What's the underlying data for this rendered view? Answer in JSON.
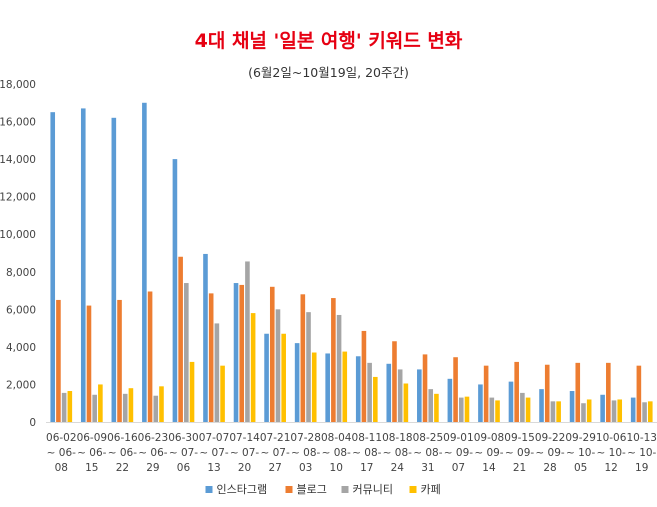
{
  "chart_data": {
    "type": "bar",
    "title": "4대 채널 '일본 여행' 키워드 변화",
    "subtitle": "(6월2일~10월19일, 20주간)",
    "xlabel": "",
    "ylabel": "",
    "ylim": [
      0,
      18000
    ],
    "yticks": [
      "0",
      "2,000",
      "4,000",
      "6,000",
      "8,000",
      "10,000",
      "12,000",
      "14,000",
      "16,000",
      "18,000"
    ],
    "grid": false,
    "legend_position": "bottom",
    "categories": [
      [
        "06-02",
        "~ 06-",
        "08"
      ],
      [
        "06-09",
        "~ 06-",
        "15"
      ],
      [
        "06-16",
        "~ 06-",
        "22"
      ],
      [
        "06-23",
        "~ 06-",
        "29"
      ],
      [
        "06-30",
        "~ 07-",
        "06"
      ],
      [
        "07-07",
        "~ 07-",
        "13"
      ],
      [
        "07-14",
        "~ 07-",
        "20"
      ],
      [
        "07-21",
        "~ 07-",
        "27"
      ],
      [
        "07-28",
        "~ 08-",
        "03"
      ],
      [
        "08-04",
        "~ 08-",
        "10"
      ],
      [
        "08-11",
        "~ 08-",
        "17"
      ],
      [
        "08-18",
        "~ 08-",
        "24"
      ],
      [
        "08-25",
        "~ 08-",
        "31"
      ],
      [
        "09-01",
        "~ 09-",
        "07"
      ],
      [
        "09-08",
        "~ 09-",
        "14"
      ],
      [
        "09-15",
        "~ 09-",
        "21"
      ],
      [
        "09-22",
        "~ 09-",
        "28"
      ],
      [
        "09-29",
        "~ 10-",
        "05"
      ],
      [
        "10-06",
        "~ 10-",
        "12"
      ],
      [
        "10-13",
        "~ 10-",
        "19"
      ]
    ],
    "series": [
      {
        "name": "인스타그램",
        "color": "#5b9bd5",
        "values": [
          16500,
          16700,
          16200,
          17000,
          14000,
          8950,
          7400,
          4700,
          4200,
          3650,
          3500,
          3100,
          2800,
          2300,
          2000,
          2150,
          1750,
          1650,
          1450,
          1300
        ]
      },
      {
        "name": "블로그",
        "color": "#ed7d31",
        "values": [
          6500,
          6200,
          6500,
          6950,
          8800,
          6850,
          7300,
          7200,
          6800,
          6600,
          4850,
          4300,
          3600,
          3450,
          3000,
          3200,
          3050,
          3150,
          3150,
          3000
        ]
      },
      {
        "name": "커뮤니티",
        "color": "#a5a5a5",
        "values": [
          1550,
          1450,
          1500,
          1400,
          7400,
          5250,
          8550,
          6000,
          5850,
          5700,
          3150,
          2800,
          1750,
          1300,
          1300,
          1550,
          1100,
          1000,
          1150,
          1050
        ]
      },
      {
        "name": "카페",
        "color": "#ffc000",
        "values": [
          1650,
          2000,
          1800,
          1900,
          3200,
          3000,
          5800,
          4700,
          3700,
          3750,
          2400,
          2050,
          1500,
          1350,
          1150,
          1300,
          1100,
          1200,
          1200,
          1100
        ]
      }
    ]
  }
}
